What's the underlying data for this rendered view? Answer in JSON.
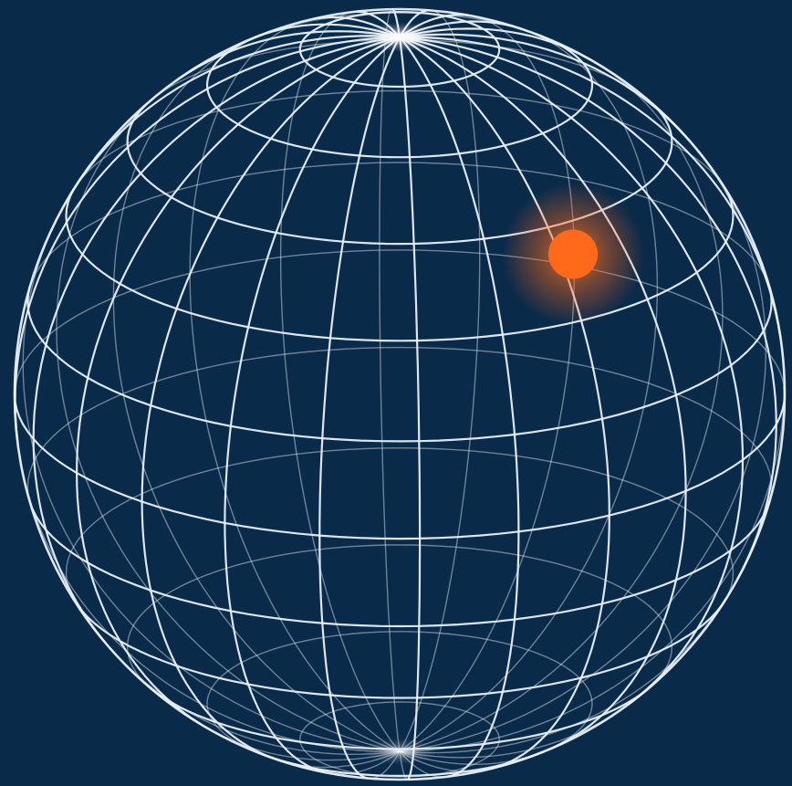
{
  "colors": {
    "background": "#0a2a4a",
    "grid_line": "#e8f0f7",
    "pole_glow": "#ffffff",
    "marker_core": "#ff6a1a",
    "marker_glow": "#ff7a2a"
  },
  "globe": {
    "graticule": {
      "meridian_spacing_deg": 15,
      "parallel_spacing_deg": 15
    },
    "tilt_deg": 22,
    "view_rotation_deg": 18,
    "marker": {
      "lat_deg": 40,
      "lon_deg": 18,
      "icon": "glowing-dot-icon"
    }
  }
}
